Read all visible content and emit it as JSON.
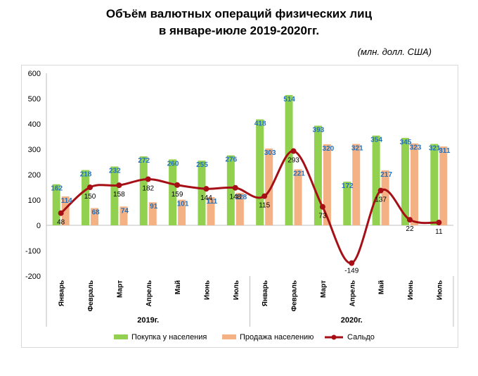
{
  "title_line1": "Объём валютных операций физических лиц",
  "title_line2": "в январе-июле 2019-2020гг.",
  "units": "(млн. долл. США)",
  "colors": {
    "buy": "#92d050",
    "sell": "#f4b183",
    "saldo": "#a50f15",
    "buy_label": "#1f6fbf"
  },
  "chart_data": {
    "type": "bar",
    "categories": [
      "Январь",
      "Февраль",
      "Март",
      "Апрель",
      "Май",
      "Июнь",
      "Июль",
      "Январь",
      "Февраль",
      "Март",
      "Апрель",
      "Май",
      "Июнь",
      "Июль"
    ],
    "groups": [
      {
        "label": "2019г.",
        "start": 0,
        "end": 6
      },
      {
        "label": "2020г.",
        "start": 7,
        "end": 13
      }
    ],
    "series": [
      {
        "name": "Покупка у населения",
        "type": "bar",
        "values": [
          162,
          218,
          232,
          272,
          260,
          255,
          276,
          418,
          514,
          393,
          172,
          354,
          345,
          321
        ]
      },
      {
        "name": "Продажа населению",
        "type": "bar",
        "values": [
          114,
          68,
          74,
          91,
          101,
          111,
          128,
          303,
          221,
          320,
          321,
          217,
          323,
          311
        ]
      },
      {
        "name": "Сальдо",
        "type": "line",
        "values": [
          48,
          150,
          158,
          182,
          159,
          144,
          148,
          115,
          293,
          73,
          -149,
          137,
          22,
          11
        ]
      }
    ],
    "ylim": [
      -200,
      600
    ],
    "yticks": [
      -200,
      -100,
      0,
      100,
      200,
      300,
      400,
      500,
      600
    ],
    "ytick_labels": [
      "-200",
      "-100",
      "0",
      "100",
      "200",
      "300",
      "400",
      "500",
      "600"
    ],
    "legend_position": "bottom",
    "grid": false
  }
}
